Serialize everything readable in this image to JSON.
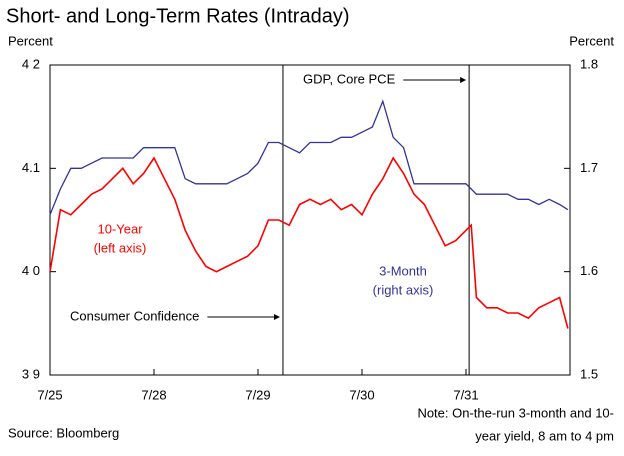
{
  "chart_data": {
    "type": "line",
    "title": "Short- and Long-Term Rates (Intraday)",
    "y_label": "Percent",
    "y2_label": "Percent",
    "source": "Source: Bloomberg",
    "note_lines": [
      "Note: On-the-run 3-month and 10-",
      "year yield, 8 am to 4 pm"
    ],
    "x": [
      0,
      0.1,
      0.2,
      0.3,
      0.4,
      0.5,
      0.6,
      0.7,
      0.8,
      0.9,
      1.0,
      1.1,
      1.2,
      1.3,
      1.4,
      1.5,
      1.6,
      1.7,
      1.8,
      1.9,
      2.0,
      2.1,
      2.2,
      2.3,
      2.4,
      2.5,
      2.6,
      2.7,
      2.8,
      2.9,
      3.0,
      3.1,
      3.2,
      3.3,
      3.4,
      3.5,
      3.6,
      3.7,
      3.8,
      3.9,
      4.0,
      4.05,
      4.1,
      4.2,
      4.3,
      4.4,
      4.5,
      4.6,
      4.7,
      4.8,
      4.9,
      4.98
    ],
    "xlim": [
      0,
      5
    ],
    "xticks": [
      {
        "value": 0,
        "label": "7/25"
      },
      {
        "value": 1,
        "label": "7/28"
      },
      {
        "value": 2,
        "label": "7/29"
      },
      {
        "value": 3,
        "label": "7/30"
      },
      {
        "value": 4,
        "label": "7/31"
      }
    ],
    "ylim": [
      3.9,
      4.2
    ],
    "yticks": [
      {
        "value": 3.9,
        "label": "3 9"
      },
      {
        "value": 4.0,
        "label": "4 0"
      },
      4.1,
      {
        "value": 4.2,
        "label": "4 2"
      }
    ],
    "y2lim": [
      1.5,
      1.8
    ],
    "y2ticks": [
      1.5,
      1.6,
      1.7,
      1.8
    ],
    "series": [
      {
        "name": "10-Year",
        "note": "(left axis)",
        "color": "#ff0000",
        "values": [
          4.0,
          4.06,
          4.055,
          4.065,
          4.075,
          4.08,
          4.09,
          4.1,
          4.085,
          4.095,
          4.11,
          4.09,
          4.07,
          4.04,
          4.02,
          4.005,
          4.0,
          4.005,
          4.01,
          4.015,
          4.025,
          4.05,
          4.05,
          4.045,
          4.065,
          4.07,
          4.065,
          4.07,
          4.06,
          4.065,
          4.055,
          4.075,
          4.09,
          4.11,
          4.095,
          4.075,
          4.065,
          4.045,
          4.025,
          4.03,
          4.04,
          4.045,
          3.975,
          3.965,
          3.965,
          3.96,
          3.96,
          3.955,
          3.965,
          3.97,
          3.975,
          3.945
        ]
      },
      {
        "name": "3-Month",
        "note": "(right axis)",
        "color": "#333399",
        "axis": "y2",
        "values": [
          1.655,
          1.68,
          1.7,
          1.7,
          1.705,
          1.71,
          1.71,
          1.71,
          1.71,
          1.72,
          1.72,
          1.72,
          1.72,
          1.69,
          1.685,
          1.685,
          1.685,
          1.685,
          1.69,
          1.695,
          1.705,
          1.725,
          1.725,
          1.72,
          1.715,
          1.725,
          1.725,
          1.725,
          1.73,
          1.73,
          1.735,
          1.74,
          1.765,
          1.73,
          1.72,
          1.685,
          1.685,
          1.685,
          1.685,
          1.685,
          1.685,
          1.68,
          1.675,
          1.675,
          1.675,
          1.675,
          1.67,
          1.67,
          1.665,
          1.67,
          1.665,
          1.66
        ]
      }
    ],
    "events": [
      {
        "x": 2.24,
        "label": "Consumer Confidence"
      },
      {
        "x": 4.03,
        "label": "GDP, Core PCE"
      }
    ]
  }
}
